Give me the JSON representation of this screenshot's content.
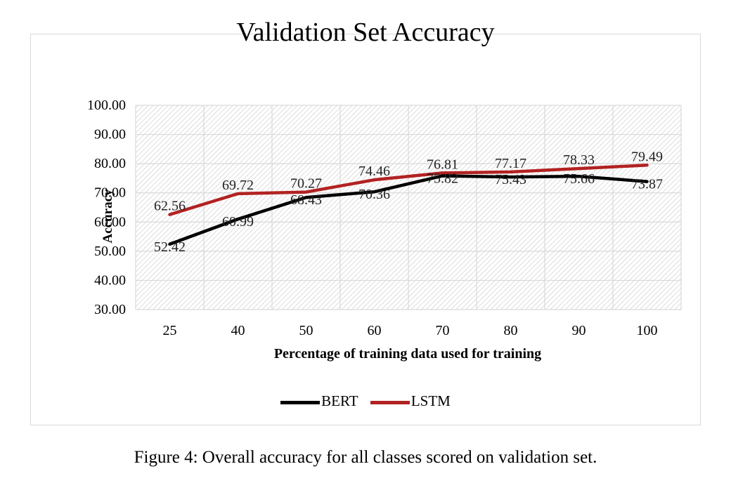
{
  "chart_data": {
    "type": "line",
    "title": "Validation Set Accuracy",
    "xlabel": "Percentage of training data used for training",
    "ylabel": "Accuracy",
    "categories": [
      "25",
      "40",
      "50",
      "60",
      "70",
      "80",
      "90",
      "100"
    ],
    "ylim": [
      30,
      100
    ],
    "yticks": [
      "30.00",
      "40.00",
      "50.00",
      "60.00",
      "70.00",
      "80.00",
      "90.00",
      "100.00"
    ],
    "grid": true,
    "legend_position": "bottom",
    "series": [
      {
        "name": "BERT",
        "color": "#000000",
        "values": [
          52.42,
          60.99,
          68.43,
          70.36,
          75.82,
          75.43,
          75.66,
          73.87
        ],
        "labels": [
          "52.42",
          "60.99",
          "68.43",
          "70.36",
          "75.82",
          "75.43",
          "75.66",
          "73.87"
        ]
      },
      {
        "name": "LSTM",
        "color": "#b22222",
        "values": [
          62.56,
          69.72,
          70.27,
          74.46,
          76.81,
          77.17,
          78.33,
          79.49
        ],
        "labels": [
          "62.56",
          "69.72",
          "70.27",
          "74.46",
          "76.81",
          "77.17",
          "78.33",
          "79.49"
        ]
      }
    ]
  },
  "caption": "Figure 4: Overall accuracy for all classes scored on validation set."
}
